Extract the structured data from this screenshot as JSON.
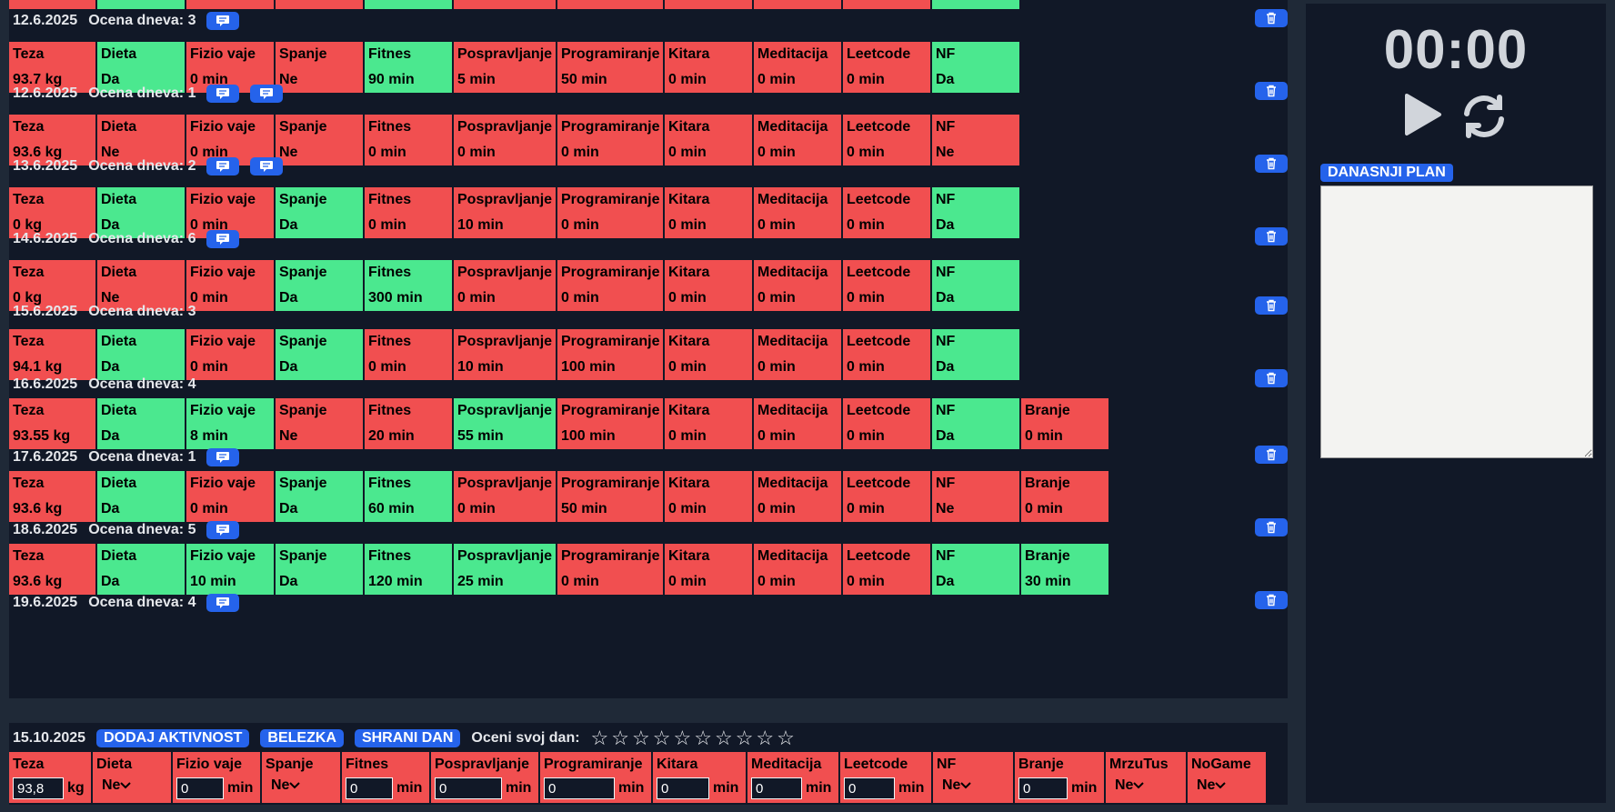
{
  "log_rows": [
    {
      "date": "12.6.2025",
      "rating_label": "Ocena dneva: 3",
      "notes": 1,
      "cells": [
        [
          "Teza",
          "93.7 kg",
          "red"
        ],
        [
          "Dieta",
          "Da",
          "green"
        ],
        [
          "Fizio vaje",
          "0 min",
          "red"
        ],
        [
          "Spanje",
          "Ne",
          "red"
        ],
        [
          "Fitnes",
          "90 min",
          "green"
        ],
        [
          "Pospravljanje",
          "5 min",
          "red"
        ],
        [
          "Programiranje",
          "50 min",
          "red"
        ],
        [
          "Kitara",
          "0 min",
          "red"
        ],
        [
          "Meditacija",
          "0 min",
          "red"
        ],
        [
          "Leetcode",
          "0 min",
          "red"
        ],
        [
          "NF",
          "Da",
          "green"
        ]
      ]
    },
    {
      "date": "12.6.2025",
      "rating_label": "Ocena dneva: 1",
      "notes": 2,
      "cells": [
        [
          "Teza",
          "93.6 kg",
          "red"
        ],
        [
          "Dieta",
          "Ne",
          "red"
        ],
        [
          "Fizio vaje",
          "0 min",
          "red"
        ],
        [
          "Spanje",
          "Ne",
          "red"
        ],
        [
          "Fitnes",
          "0 min",
          "red"
        ],
        [
          "Pospravljanje",
          "0 min",
          "red"
        ],
        [
          "Programiranje",
          "0 min",
          "red"
        ],
        [
          "Kitara",
          "0 min",
          "red"
        ],
        [
          "Meditacija",
          "0 min",
          "red"
        ],
        [
          "Leetcode",
          "0 min",
          "red"
        ],
        [
          "NF",
          "Ne",
          "red"
        ]
      ]
    },
    {
      "date": "13.6.2025",
      "rating_label": "Ocena dneva: 2",
      "notes": 2,
      "cells": [
        [
          "Teza",
          "0 kg",
          "red"
        ],
        [
          "Dieta",
          "Da",
          "green"
        ],
        [
          "Fizio vaje",
          "0 min",
          "red"
        ],
        [
          "Spanje",
          "Da",
          "green"
        ],
        [
          "Fitnes",
          "0 min",
          "red"
        ],
        [
          "Pospravljanje",
          "10 min",
          "red"
        ],
        [
          "Programiranje",
          "0 min",
          "red"
        ],
        [
          "Kitara",
          "0 min",
          "red"
        ],
        [
          "Meditacija",
          "0 min",
          "red"
        ],
        [
          "Leetcode",
          "0 min",
          "red"
        ],
        [
          "NF",
          "Da",
          "green"
        ]
      ]
    },
    {
      "date": "14.6.2025",
      "rating_label": "Ocena dneva: 6",
      "notes": 1,
      "cells": [
        [
          "Teza",
          "0 kg",
          "red"
        ],
        [
          "Dieta",
          "Ne",
          "red"
        ],
        [
          "Fizio vaje",
          "0 min",
          "red"
        ],
        [
          "Spanje",
          "Da",
          "green"
        ],
        [
          "Fitnes",
          "300 min",
          "green"
        ],
        [
          "Pospravljanje",
          "0 min",
          "red"
        ],
        [
          "Programiranje",
          "0 min",
          "red"
        ],
        [
          "Kitara",
          "0 min",
          "red"
        ],
        [
          "Meditacija",
          "0 min",
          "red"
        ],
        [
          "Leetcode",
          "0 min",
          "red"
        ],
        [
          "NF",
          "Da",
          "green"
        ]
      ]
    },
    {
      "date": "15.6.2025",
      "rating_label": "Ocena dneva: 3",
      "notes": 0,
      "cells": [
        [
          "Teza",
          "94.1 kg",
          "red"
        ],
        [
          "Dieta",
          "Da",
          "green"
        ],
        [
          "Fizio vaje",
          "0 min",
          "red"
        ],
        [
          "Spanje",
          "Da",
          "green"
        ],
        [
          "Fitnes",
          "0 min",
          "red"
        ],
        [
          "Pospravljanje",
          "10 min",
          "red"
        ],
        [
          "Programiranje",
          "100 min",
          "red"
        ],
        [
          "Kitara",
          "0 min",
          "red"
        ],
        [
          "Meditacija",
          "0 min",
          "red"
        ],
        [
          "Leetcode",
          "0 min",
          "red"
        ],
        [
          "NF",
          "Da",
          "green"
        ]
      ]
    },
    {
      "date": "16.6.2025",
      "rating_label": "Ocena dneva: 4",
      "notes": 0,
      "cells": [
        [
          "Teza",
          "93.55 kg",
          "red"
        ],
        [
          "Dieta",
          "Da",
          "green"
        ],
        [
          "Fizio vaje",
          "8 min",
          "green"
        ],
        [
          "Spanje",
          "Ne",
          "red"
        ],
        [
          "Fitnes",
          "20 min",
          "red"
        ],
        [
          "Pospravljanje",
          "55 min",
          "green"
        ],
        [
          "Programiranje",
          "100 min",
          "red"
        ],
        [
          "Kitara",
          "0 min",
          "red"
        ],
        [
          "Meditacija",
          "0 min",
          "red"
        ],
        [
          "Leetcode",
          "0 min",
          "red"
        ],
        [
          "NF",
          "Da",
          "green"
        ],
        [
          "Branje",
          "0 min",
          "red"
        ]
      ]
    },
    {
      "date": "17.6.2025",
      "rating_label": "Ocena dneva: 1",
      "notes": 1,
      "cells": [
        [
          "Teza",
          "93.6 kg",
          "red"
        ],
        [
          "Dieta",
          "Da",
          "green"
        ],
        [
          "Fizio vaje",
          "0 min",
          "red"
        ],
        [
          "Spanje",
          "Da",
          "green"
        ],
        [
          "Fitnes",
          "60 min",
          "green"
        ],
        [
          "Pospravljanje",
          "0 min",
          "red"
        ],
        [
          "Programiranje",
          "50 min",
          "red"
        ],
        [
          "Kitara",
          "0 min",
          "red"
        ],
        [
          "Meditacija",
          "0 min",
          "red"
        ],
        [
          "Leetcode",
          "0 min",
          "red"
        ],
        [
          "NF",
          "Ne",
          "red"
        ],
        [
          "Branje",
          "0 min",
          "red"
        ]
      ]
    },
    {
      "date": "18.6.2025",
      "rating_label": "Ocena dneva: 5",
      "notes": 1,
      "cells": [
        [
          "Teza",
          "93.6 kg",
          "red"
        ],
        [
          "Dieta",
          "Da",
          "green"
        ],
        [
          "Fizio vaje",
          "10 min",
          "green"
        ],
        [
          "Spanje",
          "Da",
          "green"
        ],
        [
          "Fitnes",
          "120 min",
          "green"
        ],
        [
          "Pospravljanje",
          "25 min",
          "green"
        ],
        [
          "Programiranje",
          "0 min",
          "red"
        ],
        [
          "Kitara",
          "0 min",
          "red"
        ],
        [
          "Meditacija",
          "0 min",
          "red"
        ],
        [
          "Leetcode",
          "0 min",
          "red"
        ],
        [
          "NF",
          "Da",
          "green"
        ],
        [
          "Branje",
          "30 min",
          "green"
        ]
      ]
    },
    {
      "date": "19.6.2025",
      "rating_label": "Ocena dneva: 4",
      "notes": 1,
      "cells": []
    }
  ],
  "timer": {
    "display": "00:00"
  },
  "plan": {
    "label": "DANASNJI PLAN",
    "text": ""
  },
  "today": {
    "date": "15.10.2025",
    "add_label": "DODAJ AKTIVNOST",
    "note_label": "BELEZKA",
    "save_label": "SHRANI DAN",
    "rate_label": "Oceni svoj dan:",
    "stars": 10,
    "fields": [
      {
        "label": "Teza",
        "type": "input",
        "value": "93,8",
        "unit": "kg",
        "w": 92
      },
      {
        "label": "Dieta",
        "type": "select",
        "value": "Ne",
        "w": 88
      },
      {
        "label": "Fizio vaje",
        "type": "input",
        "value": "0",
        "unit": "min",
        "w": 98
      },
      {
        "label": "Spanje",
        "type": "select",
        "value": "Ne",
        "w": 88
      },
      {
        "label": "Fitnes",
        "type": "input",
        "value": "0",
        "unit": "min",
        "w": 98
      },
      {
        "label": "Pospravljanje",
        "type": "input",
        "value": "0",
        "unit": "min",
        "w": 120
      },
      {
        "label": "Programiranje",
        "type": "input",
        "value": "0",
        "unit": "min",
        "w": 124
      },
      {
        "label": "Kitara",
        "type": "input",
        "value": "0",
        "unit": "min",
        "w": 104
      },
      {
        "label": "Meditacija",
        "type": "input",
        "value": "0",
        "unit": "min",
        "w": 102
      },
      {
        "label": "Leetcode",
        "type": "input",
        "value": "0",
        "unit": "min",
        "w": 102
      },
      {
        "label": "NF",
        "type": "select",
        "value": "Ne",
        "w": 90
      },
      {
        "label": "Branje",
        "type": "input",
        "value": "0",
        "unit": "min",
        "w": 100
      },
      {
        "label": "MrzuTus",
        "type": "select",
        "value": "Ne",
        "w": 90
      },
      {
        "label": "NoGame",
        "type": "select",
        "value": "Ne",
        "w": 88
      }
    ]
  },
  "colors": {
    "red": "#f14f50",
    "green": "#4be88f",
    "accent": "#2563eb"
  },
  "icons": [
    "note-icon",
    "trash-icon",
    "play-icon",
    "reset-icon",
    "star-icon",
    "chevron-down-icon"
  ]
}
